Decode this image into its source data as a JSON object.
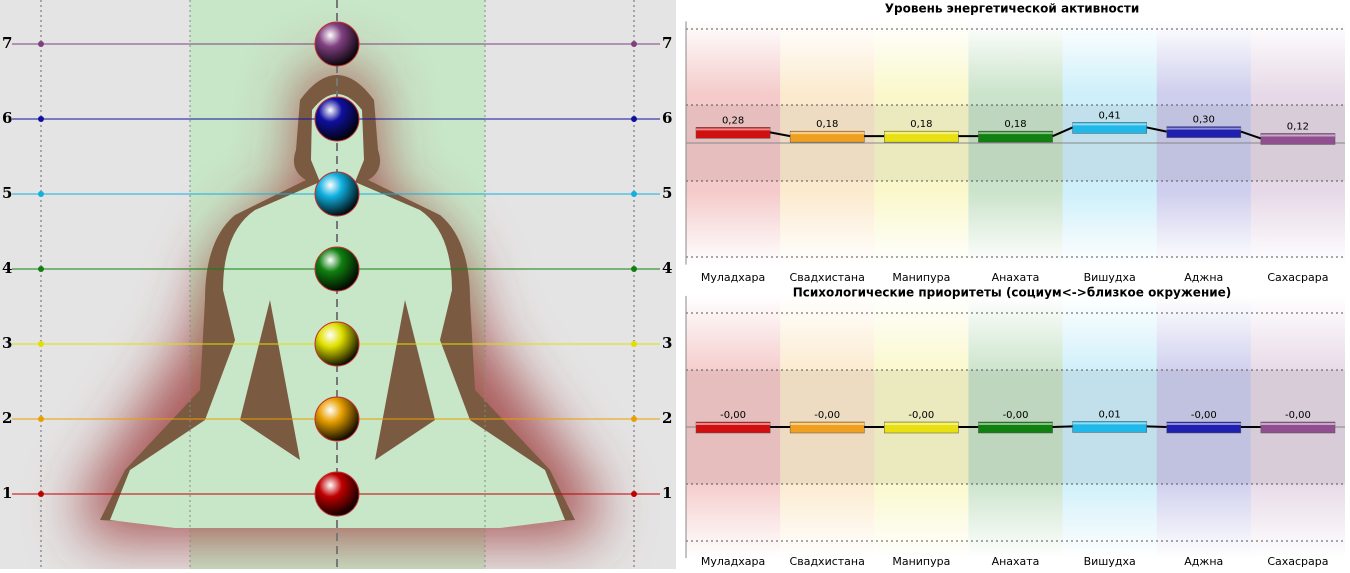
{
  "figure": {
    "levels": [
      {
        "label": "1",
        "color": "#c00000"
      },
      {
        "label": "2",
        "color": "#e8a000"
      },
      {
        "label": "3",
        "color": "#e0e000"
      },
      {
        "label": "4",
        "color": "#108010"
      },
      {
        "label": "5",
        "color": "#10b0e0"
      },
      {
        "label": "6",
        "color": "#1010a0"
      },
      {
        "label": "7",
        "color": "#804080"
      }
    ]
  },
  "chart_data": [
    {
      "type": "bar",
      "title": "Уровень энергетической активности",
      "categories": [
        "Муладхара",
        "Свадхистана",
        "Манипура",
        "Анахата",
        "Вишудха",
        "Аджна",
        "Сахасрара"
      ],
      "values": [
        0.28,
        0.18,
        0.18,
        0.18,
        0.41,
        0.3,
        0.12
      ],
      "value_labels": [
        "0,28",
        "0,18",
        "0,18",
        "0,18",
        "0,41",
        "0,30",
        "0,12"
      ],
      "colors": [
        "#d01010",
        "#f0a020",
        "#e8e010",
        "#108010",
        "#20b8e8",
        "#2020b0",
        "#905090"
      ],
      "ylim": [
        -3.2,
        3.2
      ],
      "yticks": [
        -3,
        -1,
        1,
        3
      ],
      "grid": true
    },
    {
      "type": "bar",
      "title": "Психологические приоритеты (социум<->близкое окружение)",
      "categories": [
        "Муладхара",
        "Свадхистана",
        "Манипура",
        "Анахата",
        "Вишудха",
        "Аджна",
        "Сахасрара"
      ],
      "values": [
        0,
        0,
        0,
        0,
        0.01,
        0,
        0
      ],
      "value_labels": [
        "-0,00",
        "-0,00",
        "-0,00",
        "-0,00",
        "0,01",
        "-0,00",
        "-0,00"
      ],
      "colors": [
        "#d01010",
        "#f0a020",
        "#e8e010",
        "#108010",
        "#20b8e8",
        "#2020b0",
        "#905090"
      ],
      "ylim": [
        -2.3,
        2.3
      ],
      "yticks": [
        -2,
        -1,
        1,
        2
      ],
      "grid": true
    }
  ]
}
